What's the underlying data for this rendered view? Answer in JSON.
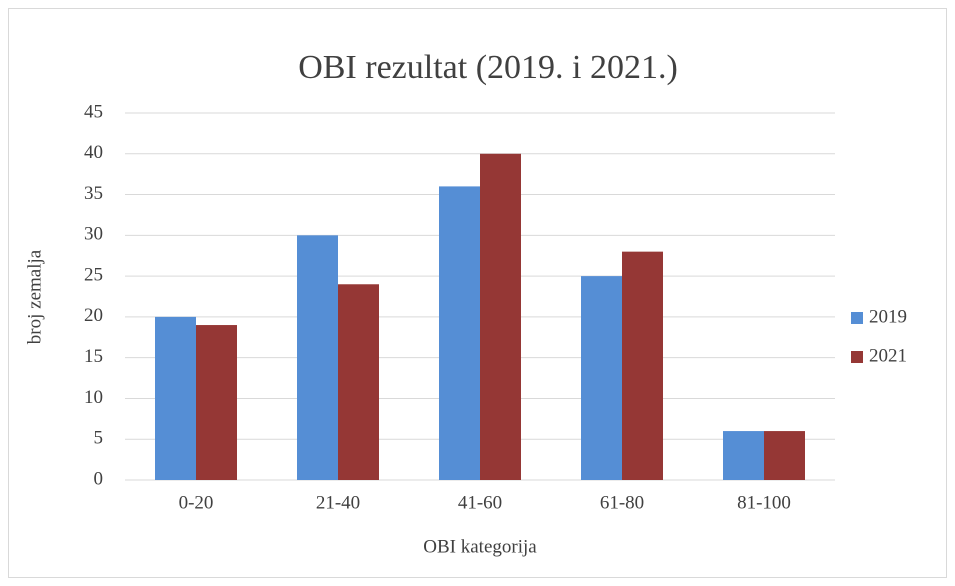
{
  "chart_data": {
    "type": "bar",
    "title": "OBI rezultat (2019. i 2021.)",
    "x_label": "OBI kategorija",
    "y_label": "broj zemalja",
    "categories": [
      "0-20",
      "21-40",
      "41-60",
      "61-80",
      "81-100"
    ],
    "series": [
      {
        "name": "2019",
        "color": "#558ed5",
        "values": [
          20,
          30,
          36,
          25,
          6
        ]
      },
      {
        "name": "2021",
        "color": "#953735",
        "values": [
          19,
          24,
          40,
          28,
          6
        ]
      }
    ],
    "ylim": [
      0,
      45
    ],
    "yticks": [
      0,
      5,
      10,
      15,
      20,
      25,
      30,
      35,
      40,
      45
    ],
    "grid": true,
    "legend": "right"
  }
}
